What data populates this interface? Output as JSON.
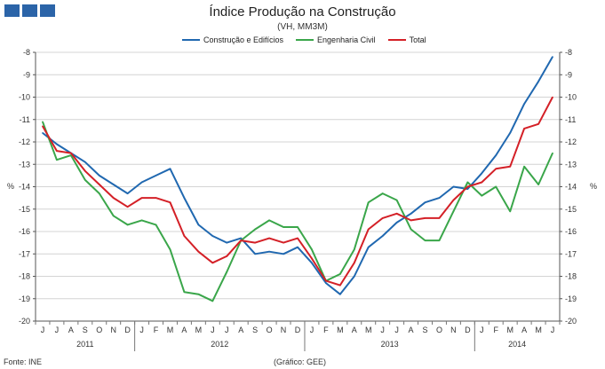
{
  "header": {
    "title": "Índice Produção na Construção",
    "subtitle": "(VH, MM3M)"
  },
  "footer": {
    "source": "Fonte: INE",
    "credit": "(Gráfico: GEE)"
  },
  "chart_data": {
    "type": "line",
    "title": "Índice Produção na Construção",
    "subtitle": "(VH, MM3M)",
    "ylabel_left": "%",
    "ylabel_right": "%",
    "ylim": [
      -20,
      -8
    ],
    "yticks": [
      -8,
      -9,
      -10,
      -11,
      -12,
      -13,
      -14,
      -15,
      -16,
      -17,
      -18,
      -19,
      -20
    ],
    "grid": true,
    "legend_position": "top",
    "categories": [
      "J",
      "J",
      "A",
      "S",
      "O",
      "N",
      "D",
      "J",
      "F",
      "M",
      "A",
      "M",
      "J",
      "J",
      "A",
      "S",
      "O",
      "N",
      "D",
      "J",
      "F",
      "M",
      "A",
      "M",
      "J",
      "J",
      "A",
      "S",
      "O",
      "N",
      "D",
      "J",
      "F",
      "M",
      "A",
      "M",
      "J"
    ],
    "year_labels": [
      {
        "label": "2011",
        "start": 0,
        "end": 6
      },
      {
        "label": "2012",
        "start": 7,
        "end": 18
      },
      {
        "label": "2013",
        "start": 19,
        "end": 30
      },
      {
        "label": "2014",
        "start": 31,
        "end": 36
      }
    ],
    "series": [
      {
        "name": "Construção e Edifícios",
        "color": "#2068b0",
        "values": [
          -11.6,
          -12.1,
          -12.5,
          -12.9,
          -13.5,
          -13.9,
          -14.3,
          -13.8,
          -13.5,
          -13.2,
          -14.5,
          -15.7,
          -16.2,
          -16.5,
          -16.3,
          -17.0,
          -16.9,
          -17.0,
          -16.7,
          -17.4,
          -18.3,
          -18.8,
          -18.0,
          -16.7,
          -16.2,
          -15.6,
          -15.2,
          -14.7,
          -14.5,
          -14.0,
          -14.1,
          -13.4,
          -12.6,
          -11.6,
          -10.3,
          -9.3,
          -8.2
        ]
      },
      {
        "name": "Engenharia Civil",
        "color": "#3aa64a",
        "values": [
          -11.1,
          -12.8,
          -12.6,
          -13.7,
          -14.3,
          -15.3,
          -15.7,
          -15.5,
          -15.7,
          -16.8,
          -18.7,
          -18.8,
          -19.1,
          -17.8,
          -16.4,
          -15.9,
          -15.5,
          -15.8,
          -15.8,
          -16.8,
          -18.2,
          -17.9,
          -16.8,
          -14.7,
          -14.3,
          -14.6,
          -15.9,
          -16.4,
          -16.4,
          -15.1,
          -13.8,
          -14.4,
          -14.0,
          -15.1,
          -13.1,
          -13.9,
          -12.5
        ]
      },
      {
        "name": "Total",
        "color": "#d42027",
        "values": [
          -11.3,
          -12.4,
          -12.5,
          -13.3,
          -13.9,
          -14.5,
          -14.9,
          -14.5,
          -14.5,
          -14.7,
          -16.2,
          -16.9,
          -17.4,
          -17.1,
          -16.4,
          -16.5,
          -16.3,
          -16.5,
          -16.3,
          -17.2,
          -18.2,
          -18.4,
          -17.4,
          -15.9,
          -15.4,
          -15.2,
          -15.5,
          -15.4,
          -15.4,
          -14.6,
          -14.0,
          -13.8,
          -13.2,
          -13.1,
          -11.4,
          -11.2,
          -10.0
        ]
      }
    ]
  }
}
